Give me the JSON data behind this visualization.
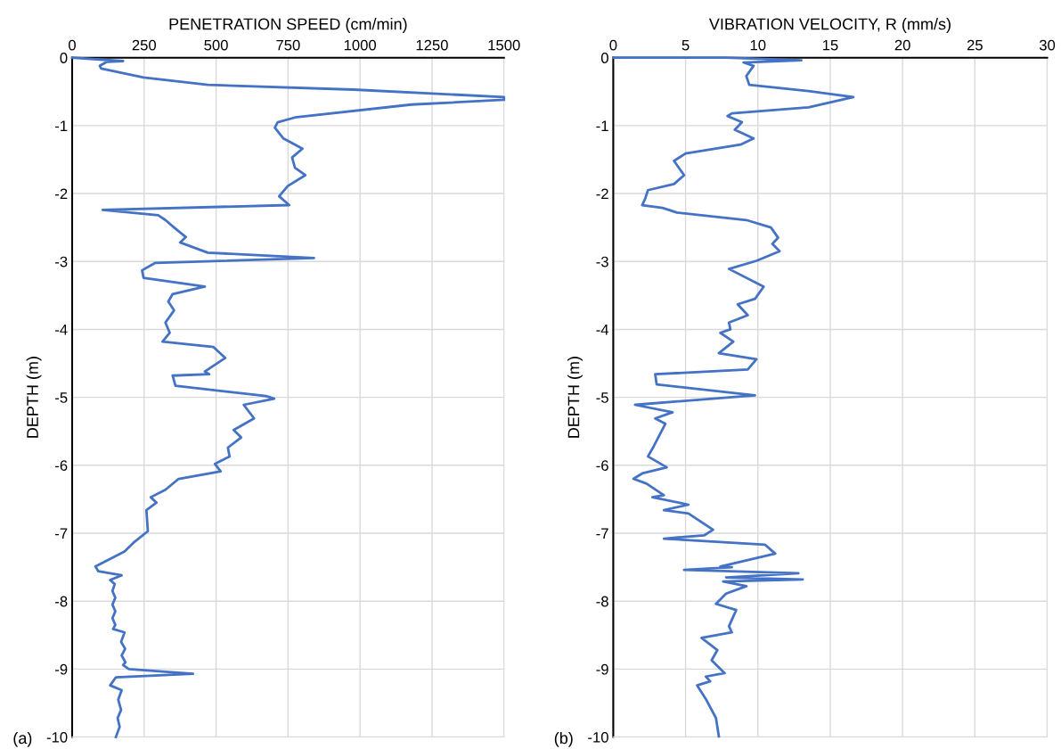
{
  "chart_data": [
    {
      "type": "line",
      "xlabel": "PENETRATION SPEED (cm/min)",
      "ylabel": "DEPTH (m)",
      "annotations": [
        "(a)"
      ],
      "xlim": [
        0,
        1500
      ],
      "xticks": [
        0,
        250,
        500,
        750,
        1000,
        1250,
        1500
      ],
      "ylim": [
        -10,
        0
      ],
      "yticks": [
        0,
        -1,
        -2,
        -3,
        -4,
        -5,
        -6,
        -7,
        -8,
        -9,
        -10
      ],
      "grid": true,
      "tick_labels": "xy",
      "series": [
        {
          "color": "#4472c4",
          "x": [
            0,
            177,
            121,
            96,
            101,
            248,
            471,
            977,
            1500,
            1500,
            1179,
            774,
            714,
            704,
            734,
            800,
            764,
            774,
            810,
            749,
            719,
            754,
            106,
            299,
            324,
            354,
            395,
            375,
            471,
            840,
            289,
            243,
            248,
            461,
            349,
            334,
            354,
            324,
            339,
            314,
            491,
            532,
            461,
            476,
            349,
            359,
            673,
            702,
            596,
            632,
            561,
            587,
            541,
            547,
            496,
            516,
            370,
            324,
            273,
            293,
            258,
            263,
            213,
            182,
            81,
            91,
            172,
            132,
            148,
            140,
            150,
            140,
            150,
            140,
            150,
            142,
            182,
            170,
            184,
            172,
            185,
            177,
            197,
            420,
            152,
            132,
            172,
            160,
            170,
            158,
            165,
            152
          ],
          "values": [
            0,
            -0.05,
            -0.06,
            -0.12,
            -0.16,
            -0.29,
            -0.4,
            -0.47,
            -0.58,
            -0.62,
            -0.69,
            -0.88,
            -0.95,
            -1.03,
            -1.19,
            -1.34,
            -1.47,
            -1.62,
            -1.73,
            -1.89,
            -2.04,
            -2.17,
            -2.24,
            -2.32,
            -2.39,
            -2.5,
            -2.64,
            -2.72,
            -2.87,
            -2.95,
            -3.02,
            -3.13,
            -3.24,
            -3.37,
            -3.48,
            -3.59,
            -3.72,
            -3.9,
            -4.05,
            -4.18,
            -4.26,
            -4.42,
            -4.62,
            -4.66,
            -4.68,
            -4.83,
            -4.98,
            -5.02,
            -5.11,
            -5.31,
            -5.48,
            -5.59,
            -5.74,
            -5.87,
            -5.98,
            -6.09,
            -6.2,
            -6.36,
            -6.47,
            -6.55,
            -6.66,
            -6.97,
            -7.14,
            -7.27,
            -7.49,
            -7.56,
            -7.62,
            -7.69,
            -7.75,
            -7.85,
            -7.95,
            -8.05,
            -8.15,
            -8.25,
            -8.35,
            -8.41,
            -8.46,
            -8.6,
            -8.7,
            -8.8,
            -8.9,
            -8.94,
            -9.0,
            -9.07,
            -9.12,
            -9.24,
            -9.31,
            -9.45,
            -9.6,
            -9.72,
            -9.85,
            -10.0
          ]
        }
      ]
    },
    {
      "type": "line",
      "xlabel": "VIBRATION VELOCITY, R (mm/s)",
      "ylabel": "DEPTH (m)",
      "annotations": [
        "(b)"
      ],
      "xlim": [
        0,
        30
      ],
      "xticks": [
        0,
        5,
        10,
        15,
        20,
        25,
        30
      ],
      "ylim": [
        -10,
        0
      ],
      "yticks": [
        0,
        -1,
        -2,
        -3,
        -4,
        -5,
        -6,
        -7,
        -8,
        -9,
        -10
      ],
      "grid": true,
      "tick_labels": "xy",
      "series": [
        {
          "color": "#4472c4",
          "x": [
            0,
            7.8,
            13,
            9.0,
            9.7,
            9.2,
            9.4,
            13.5,
            16.6,
            13.5,
            8.2,
            7.9,
            8.9,
            8.4,
            9.7,
            8.8,
            5.0,
            4.2,
            4.9,
            4.2,
            2.4,
            2.2,
            2.0,
            3.4,
            4.4,
            9.2,
            10.9,
            11.4,
            11.0,
            11.5,
            9.9,
            8.0,
            10.4,
            9.8,
            8.6,
            9.3,
            8.0,
            8.1,
            7.4,
            8.3,
            7.3,
            9.9,
            9.3,
            2.9,
            3.0,
            9.8,
            1.5,
            4.1,
            2.9,
            3.6,
            2.8,
            2.4,
            3.7,
            2.0,
            1.4,
            2.3,
            3.5,
            2.7,
            5.2,
            3.5,
            5.2,
            6.9,
            6.3,
            3.5,
            10.5,
            11.2,
            7.4,
            8.2,
            4.9,
            12.8,
            7.8,
            13.1,
            7.6,
            9.2,
            7.8,
            7.1,
            8.5,
            8.0,
            8.2,
            6.1,
            7.2,
            6.8,
            7.7,
            6.4,
            6.7,
            5.8,
            6.4,
            7.1,
            7.3
          ],
          "values": [
            0,
            0,
            -0.04,
            -0.07,
            -0.12,
            -0.27,
            -0.4,
            -0.49,
            -0.58,
            -0.73,
            -0.82,
            -0.86,
            -0.95,
            -1.06,
            -1.19,
            -1.28,
            -1.41,
            -1.52,
            -1.73,
            -1.86,
            -1.95,
            -2.08,
            -2.17,
            -2.21,
            -2.28,
            -2.39,
            -2.5,
            -2.65,
            -2.74,
            -2.85,
            -2.99,
            -3.11,
            -3.37,
            -3.55,
            -3.63,
            -3.79,
            -3.9,
            -4.0,
            -4.05,
            -4.18,
            -4.35,
            -4.44,
            -4.59,
            -4.66,
            -4.81,
            -4.97,
            -5.11,
            -5.22,
            -5.31,
            -5.39,
            -5.72,
            -5.87,
            -6.03,
            -6.12,
            -6.2,
            -6.27,
            -6.44,
            -6.47,
            -6.58,
            -6.66,
            -6.71,
            -6.95,
            -7.03,
            -7.08,
            -7.17,
            -7.3,
            -7.49,
            -7.5,
            -7.54,
            -7.59,
            -7.65,
            -7.68,
            -7.71,
            -7.78,
            -7.89,
            -8.04,
            -8.13,
            -8.37,
            -8.46,
            -8.54,
            -8.72,
            -8.87,
            -9.06,
            -9.11,
            -9.18,
            -9.24,
            -9.44,
            -9.72,
            -9.99
          ]
        }
      ]
    }
  ]
}
